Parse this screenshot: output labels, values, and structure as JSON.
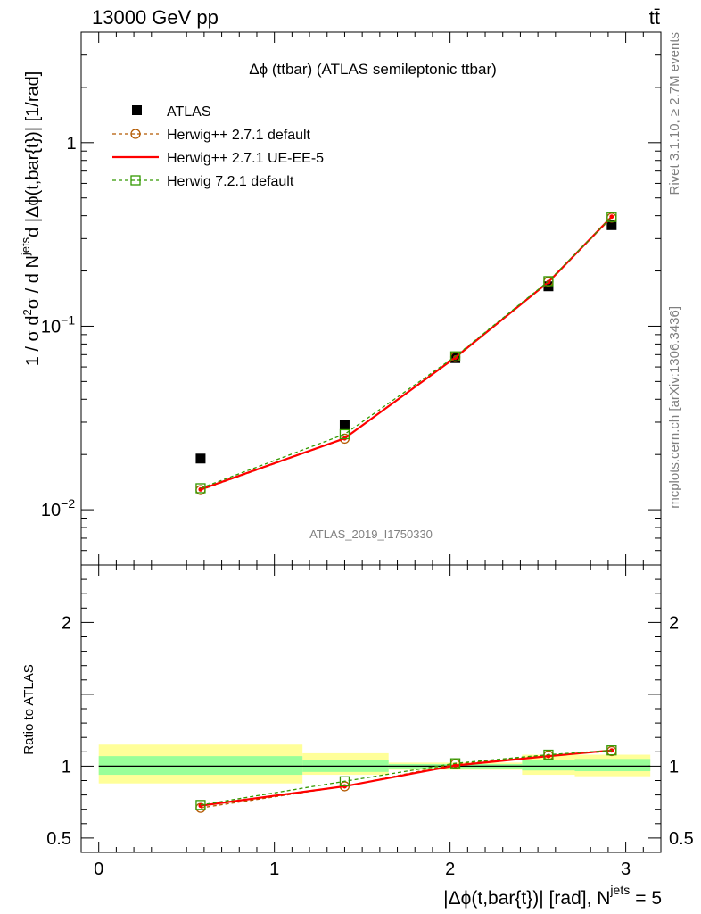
{
  "header": {
    "beam_label": "13000 GeV pp",
    "process_label": "tt̄"
  },
  "side_labels": {
    "rivet": "Rivet 3.1.10, ≥ 2.7M events",
    "mcplots": "mcplots.cern.ch [arXiv:1306.3436]"
  },
  "chart_data": {
    "type": "line",
    "title": "Δϕ (ttbar) (ATLAS semileptonic ttbar)",
    "watermark": "ATLAS_2019_I1750330",
    "xlabel": "|Δϕ(t,bar{t})| [rad], N^jets = 5",
    "xlabel_main": "|Δϕ(t,bar{t})| [rad], N",
    "xlabel_sup": "jets",
    "xlabel_tail": "= 5",
    "ylabel": "1 / σ d²σ / d N^jets d |Δϕ(t,bar{t})| [1/rad]",
    "ylabel_parts": {
      "a": "1 / σ d",
      "a_sup": "2",
      "b": "σ / d N",
      "b_sup": "jets",
      "c": "d |Δϕ(t,bar{t})| [1/rad]"
    },
    "xlim": [
      -0.1,
      3.2
    ],
    "ylim": [
      0.005,
      4.0
    ],
    "yscale": "log",
    "x_ticks": [
      "0",
      "1",
      "2",
      "3"
    ],
    "y_ticks": [
      {
        "value": 0.01,
        "base": "10",
        "exp": "−2"
      },
      {
        "value": 0.1,
        "base": "10",
        "exp": "−1"
      },
      {
        "value": 1,
        "base": "1",
        "exp": ""
      }
    ],
    "legend_position": "top-left",
    "series": [
      {
        "name": "ATLAS",
        "color": "#000000",
        "marker": "filled-square",
        "x": [
          0.58,
          1.4,
          2.03,
          2.56,
          2.92
        ],
        "y": [
          0.019,
          0.029,
          0.067,
          0.165,
          0.355
        ]
      },
      {
        "name": "Herwig++ 2.7.1 default",
        "color": "#b35900",
        "marker": "open-circle",
        "dash": "4,3",
        "x": [
          0.58,
          1.4,
          2.03,
          2.56,
          2.92
        ],
        "y": [
          0.0128,
          0.0244,
          0.068,
          0.175,
          0.39
        ]
      },
      {
        "name": "Herwig++ 2.7.1 UE-EE-5",
        "color": "#ff0000",
        "marker": "line",
        "x": [
          0.58,
          1.4,
          2.03,
          2.56,
          2.92
        ],
        "y": [
          0.0129,
          0.0245,
          0.0675,
          0.174,
          0.395
        ]
      },
      {
        "name": "Herwig 7.2.1 default",
        "color": "#339900",
        "marker": "open-square",
        "dash": "4,3",
        "x": [
          0.58,
          1.4,
          2.03,
          2.56,
          2.92
        ],
        "y": [
          0.0131,
          0.0258,
          0.0685,
          0.176,
          0.393
        ]
      }
    ],
    "ratio": {
      "ylabel": "Ratio to ATLAS",
      "ylim": [
        0.4,
        2.4
      ],
      "y_ticks": [
        "0.5",
        "1",
        "2"
      ],
      "bands": [
        {
          "x0": 0.0,
          "x1": 1.16,
          "inner": [
            0.94,
            1.07
          ],
          "outer": [
            0.88,
            1.15
          ]
        },
        {
          "x0": 1.16,
          "x1": 1.65,
          "inner": [
            0.96,
            1.04
          ],
          "outer": [
            0.94,
            1.09
          ]
        },
        {
          "x0": 1.65,
          "x1": 2.41,
          "inner": [
            0.985,
            1.015
          ],
          "outer": [
            0.975,
            1.025
          ]
        },
        {
          "x0": 2.41,
          "x1": 2.71,
          "inner": [
            0.97,
            1.04
          ],
          "outer": [
            0.94,
            1.08
          ]
        },
        {
          "x0": 2.71,
          "x1": 3.14,
          "inner": [
            0.965,
            1.05
          ],
          "outer": [
            0.93,
            1.08
          ]
        }
      ],
      "series": [
        {
          "name": "Herwig++ 2.7.1 default",
          "color": "#b35900",
          "marker": "open-circle",
          "dash": "4,3",
          "x": [
            0.58,
            1.4,
            2.03,
            2.56,
            2.92
          ],
          "y": [
            0.71,
            0.86,
            1.015,
            1.075,
            1.105
          ]
        },
        {
          "name": "Herwig++ 2.7.1 UE-EE-5",
          "color": "#ff0000",
          "marker": "line",
          "x": [
            0.58,
            1.4,
            2.03,
            2.56,
            2.92
          ],
          "y": [
            0.725,
            0.86,
            1.005,
            1.07,
            1.11
          ]
        },
        {
          "name": "Herwig 7.2.1 default",
          "color": "#339900",
          "marker": "open-square",
          "dash": "4,3",
          "x": [
            0.58,
            1.4,
            2.03,
            2.56,
            2.92
          ],
          "y": [
            0.73,
            0.895,
            1.02,
            1.08,
            1.11
          ]
        }
      ]
    }
  }
}
